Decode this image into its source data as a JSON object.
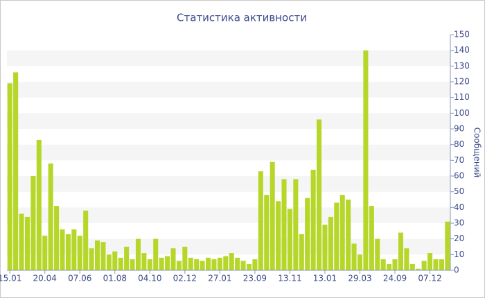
{
  "chart_data": {
    "type": "bar",
    "title": "Статистика активности",
    "y_label": "Сообщений",
    "categories": [
      "15.01",
      null,
      null,
      null,
      null,
      null,
      "20.04",
      null,
      null,
      null,
      null,
      null,
      "07.06",
      null,
      null,
      null,
      null,
      null,
      "01.08",
      null,
      null,
      null,
      null,
      null,
      "04.10",
      null,
      null,
      null,
      null,
      null,
      "02.12",
      null,
      null,
      null,
      null,
      null,
      "27.01",
      null,
      null,
      null,
      null,
      null,
      "23.09",
      null,
      null,
      null,
      null,
      null,
      "13.11",
      null,
      null,
      null,
      null,
      null,
      "13.01",
      null,
      null,
      null,
      null,
      null,
      "29.03",
      null,
      null,
      null,
      null,
      null,
      "24.09",
      null,
      null,
      null,
      null,
      null,
      "07.12",
      null,
      null,
      null
    ],
    "values": [
      119,
      126,
      36,
      34,
      60,
      83,
      22,
      68,
      41,
      26,
      23,
      26,
      22,
      38,
      14,
      19,
      18,
      10,
      12,
      8,
      15,
      7,
      20,
      11,
      7,
      20,
      8,
      9,
      14,
      6,
      15,
      8,
      7,
      6,
      8,
      7,
      8,
      9,
      11,
      8,
      6,
      4,
      7,
      63,
      48,
      69,
      44,
      58,
      39,
      58,
      23,
      46,
      64,
      96,
      29,
      34,
      43,
      48,
      45,
      17,
      10,
      140,
      41,
      20,
      7,
      4,
      7,
      24,
      14,
      4,
      1,
      6,
      11,
      7,
      7,
      31
    ],
    "color": "#b6d72a",
    "ylim": [
      0,
      150
    ],
    "yticks": [
      0,
      10,
      20,
      30,
      40,
      50,
      60,
      70,
      80,
      90,
      100,
      110,
      120,
      130,
      140,
      150
    ],
    "grid": true
  }
}
